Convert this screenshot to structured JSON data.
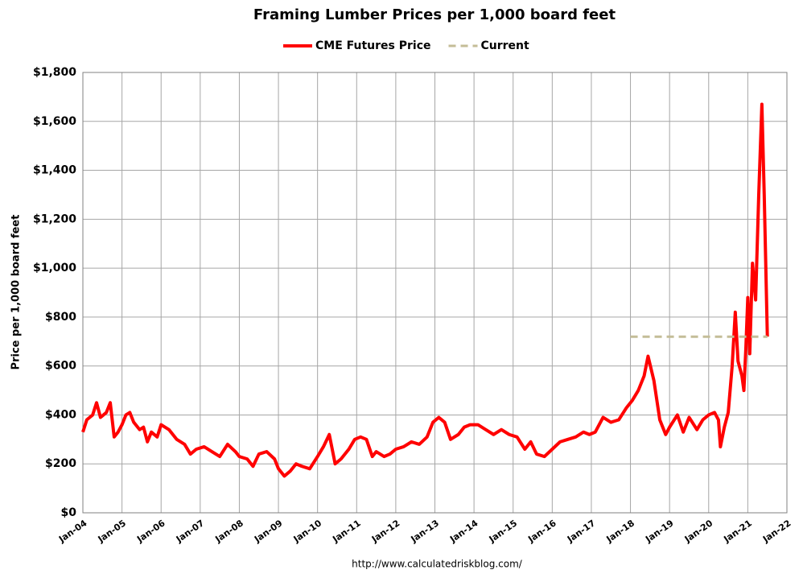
{
  "chart_data": {
    "type": "line",
    "title": "Framing Lumber Prices per 1,000 board feet",
    "y_label": "Price per 1,000 board feet",
    "source": "http://www.calculatedriskblog.com/",
    "xlim": [
      2004,
      2022
    ],
    "xticks": [
      {
        "value": 2004,
        "label": "Jan-04"
      },
      {
        "value": 2005,
        "label": "Jan-05"
      },
      {
        "value": 2006,
        "label": "Jan-06"
      },
      {
        "value": 2007,
        "label": "Jan-07"
      },
      {
        "value": 2008,
        "label": "Jan-08"
      },
      {
        "value": 2009,
        "label": "Jan-09"
      },
      {
        "value": 2010,
        "label": "Jan-10"
      },
      {
        "value": 2011,
        "label": "Jan-11"
      },
      {
        "value": 2012,
        "label": "Jan-12"
      },
      {
        "value": 2013,
        "label": "Jan-13"
      },
      {
        "value": 2014,
        "label": "Jan-14"
      },
      {
        "value": 2015,
        "label": "Jan-15"
      },
      {
        "value": 2016,
        "label": "Jan-16"
      },
      {
        "value": 2017,
        "label": "Jan-17"
      },
      {
        "value": 2018,
        "label": "Jan-18"
      },
      {
        "value": 2019,
        "label": "Jan-19"
      },
      {
        "value": 2020,
        "label": "Jan-20"
      },
      {
        "value": 2021,
        "label": "Jan-21"
      },
      {
        "value": 2022,
        "label": "Jan-22"
      }
    ],
    "ylim": [
      0,
      1800
    ],
    "yticks": [
      {
        "value": 0,
        "label": "$0"
      },
      {
        "value": 200,
        "label": "$200"
      },
      {
        "value": 400,
        "label": "$400"
      },
      {
        "value": 600,
        "label": "$600"
      },
      {
        "value": 800,
        "label": "$800"
      },
      {
        "value": 1000,
        "label": "$1,000"
      },
      {
        "value": 1200,
        "label": "$1,200"
      },
      {
        "value": 1400,
        "label": "$1,400"
      },
      {
        "value": 1600,
        "label": "$1,600"
      },
      {
        "value": 1800,
        "label": "$1,800"
      }
    ],
    "grid": true,
    "legend": "top",
    "series": [
      {
        "name": "CME Futures Price",
        "color": "#ff0000",
        "dashed": false,
        "x": [
          2004.0,
          2004.1,
          2004.25,
          2004.35,
          2004.45,
          2004.6,
          2004.7,
          2004.8,
          2004.9,
          2005.0,
          2005.1,
          2005.2,
          2005.3,
          2005.45,
          2005.55,
          2005.65,
          2005.75,
          2005.9,
          2006.0,
          2006.2,
          2006.4,
          2006.6,
          2006.75,
          2006.9,
          2007.1,
          2007.3,
          2007.5,
          2007.7,
          2007.9,
          2008.0,
          2008.2,
          2008.35,
          2008.5,
          2008.7,
          2008.9,
          2009.0,
          2009.15,
          2009.3,
          2009.45,
          2009.6,
          2009.8,
          2010.0,
          2010.15,
          2010.3,
          2010.45,
          2010.6,
          2010.8,
          2010.95,
          2011.1,
          2011.25,
          2011.4,
          2011.5,
          2011.7,
          2011.85,
          2012.0,
          2012.2,
          2012.4,
          2012.6,
          2012.8,
          2012.95,
          2013.1,
          2013.25,
          2013.4,
          2013.6,
          2013.75,
          2013.9,
          2014.1,
          2014.3,
          2014.5,
          2014.7,
          2014.9,
          2015.1,
          2015.3,
          2015.45,
          2015.6,
          2015.8,
          2016.0,
          2016.2,
          2016.4,
          2016.6,
          2016.8,
          2016.95,
          2017.1,
          2017.3,
          2017.5,
          2017.7,
          2017.9,
          2018.05,
          2018.2,
          2018.35,
          2018.45,
          2018.6,
          2018.75,
          2018.9,
          2019.0,
          2019.2,
          2019.35,
          2019.5,
          2019.7,
          2019.85,
          2020.0,
          2020.15,
          2020.25,
          2020.3,
          2020.4,
          2020.5,
          2020.6,
          2020.68,
          2020.75,
          2020.85,
          2020.9,
          2020.95,
          2021.0,
          2021.05,
          2021.12,
          2021.2,
          2021.28,
          2021.36,
          2021.42,
          2021.5
        ],
        "values": [
          330,
          380,
          400,
          450,
          390,
          410,
          450,
          310,
          330,
          360,
          400,
          410,
          370,
          340,
          350,
          290,
          330,
          310,
          360,
          340,
          300,
          280,
          240,
          260,
          270,
          250,
          230,
          280,
          250,
          230,
          220,
          190,
          240,
          250,
          220,
          180,
          150,
          170,
          200,
          190,
          180,
          230,
          270,
          320,
          200,
          220,
          260,
          300,
          310,
          300,
          230,
          250,
          230,
          240,
          260,
          270,
          290,
          280,
          310,
          370,
          390,
          370,
          300,
          320,
          350,
          360,
          360,
          340,
          320,
          340,
          320,
          310,
          260,
          290,
          240,
          230,
          260,
          290,
          300,
          310,
          330,
          320,
          330,
          390,
          370,
          380,
          430,
          460,
          500,
          560,
          640,
          540,
          380,
          320,
          350,
          400,
          330,
          390,
          340,
          380,
          400,
          410,
          380,
          270,
          350,
          410,
          600,
          820,
          620,
          560,
          500,
          670,
          880,
          650,
          1020,
          870,
          1300,
          1670,
          1300,
          720
        ]
      },
      {
        "name": "Current",
        "color": "#c4bd97",
        "dashed": true,
        "x": [
          2018,
          2021.5
        ],
        "values": [
          720,
          720
        ]
      }
    ]
  }
}
